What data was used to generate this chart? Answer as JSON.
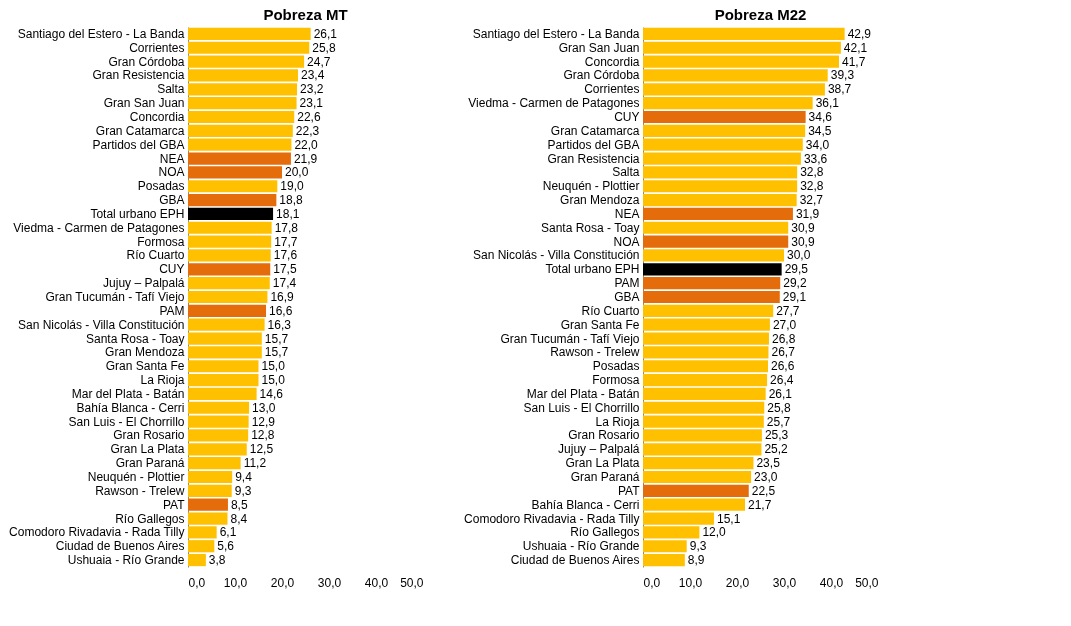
{
  "chart_data": [
    {
      "type": "bar",
      "orientation": "horizontal",
      "title": "Pobreza MT",
      "grid": false,
      "categories": [
        "Santiago del Estero - La Banda",
        "Corrientes",
        "Gran Córdoba",
        "Gran Resistencia",
        "Salta",
        "Gran San Juan",
        "Concordia",
        "Gran Catamarca",
        "Partidos del GBA",
        "NEA",
        "NOA",
        "Posadas",
        "GBA",
        "Total urbano EPH",
        "Viedma - Carmen de Patagones",
        "Formosa",
        "Río Cuarto",
        "CUY",
        "Jujuy – Palpalá",
        "Gran Tucumán - Tafí Viejo",
        "PAM",
        "San Nicolás - Villa Constitución",
        "Santa Rosa - Toay",
        "Gran Mendoza",
        "Gran Santa Fe",
        "La Rioja",
        "Mar del Plata - Batán",
        "Bahía Blanca - Cerri",
        "San Luis - El Chorrillo",
        "Gran Rosario",
        "Gran La Plata",
        "Gran Paraná",
        "Neuquén - Plottier",
        "Rawson - Trelew",
        "PAT",
        "Río Gallegos",
        "Comodoro Rivadavia - Rada Tilly",
        "Ciudad de Buenos Aires",
        "Ushuaia - Río Grande"
      ],
      "values": [
        26.1,
        25.8,
        24.7,
        23.4,
        23.2,
        23.1,
        22.6,
        22.3,
        22.0,
        21.9,
        20.0,
        19.0,
        18.8,
        18.1,
        17.8,
        17.7,
        17.6,
        17.5,
        17.4,
        16.9,
        16.6,
        16.3,
        15.7,
        15.7,
        15.0,
        15.0,
        14.6,
        13.0,
        12.9,
        12.8,
        12.5,
        11.2,
        9.4,
        9.3,
        8.5,
        8.4,
        6.1,
        5.6,
        3.8
      ],
      "value_labels": [
        "26,1",
        "25,8",
        "24,7",
        "23,4",
        "23,2",
        "23,1",
        "22,6",
        "22,3",
        "22,0",
        "21,9",
        "20,0",
        "19,0",
        "18,8",
        "18,1",
        "17,8",
        "17,7",
        "17,6",
        "17,5",
        "17,4",
        "16,9",
        "16,6",
        "16,3",
        "15,7",
        "15,7",
        "15,0",
        "15,0",
        "14,6",
        "13,0",
        "12,9",
        "12,8",
        "12,5",
        "11,2",
        "9,4",
        "9,3",
        "8,5",
        "8,4",
        "6,1",
        "5,6",
        "3,8"
      ],
      "colors": [
        "#ffc000",
        "#ffc000",
        "#ffc000",
        "#ffc000",
        "#ffc000",
        "#ffc000",
        "#ffc000",
        "#ffc000",
        "#ffc000",
        "#e46c0a",
        "#e46c0a",
        "#ffc000",
        "#e46c0a",
        "#000000",
        "#ffc000",
        "#ffc000",
        "#ffc000",
        "#e46c0a",
        "#ffc000",
        "#ffc000",
        "#e46c0a",
        "#ffc000",
        "#ffc000",
        "#ffc000",
        "#ffc000",
        "#ffc000",
        "#ffc000",
        "#ffc000",
        "#ffc000",
        "#ffc000",
        "#ffc000",
        "#ffc000",
        "#ffc000",
        "#ffc000",
        "#e46c0a",
        "#ffc000",
        "#ffc000",
        "#ffc000",
        "#ffc000"
      ],
      "xlim": [
        0,
        50
      ],
      "xticks": [
        {
          "value": 0,
          "label": "0,0"
        },
        {
          "value": 10,
          "label": "10,0"
        },
        {
          "value": 20,
          "label": "20,0"
        },
        {
          "value": 30,
          "label": "30,0"
        },
        {
          "value": 40,
          "label": "40,0"
        },
        {
          "value": 50,
          "label": "50,0"
        }
      ]
    },
    {
      "type": "bar",
      "orientation": "horizontal",
      "title": "Pobreza M22",
      "grid": false,
      "categories": [
        "Santiago del Estero - La Banda",
        "Gran San Juan",
        "Concordia",
        "Gran Córdoba",
        "Corrientes",
        "Viedma - Carmen de Patagones",
        "CUY",
        "Gran Catamarca",
        "Partidos del GBA",
        "Gran Resistencia",
        "Salta",
        "Neuquén - Plottier",
        "Gran Mendoza",
        "NEA",
        "Santa Rosa - Toay",
        "NOA",
        "San Nicolás - Villa Constitución",
        "Total urbano EPH",
        "PAM",
        "GBA",
        "Río Cuarto",
        "Gran Santa Fe",
        "Gran Tucumán - Tafí Viejo",
        "Rawson - Trelew",
        "Posadas",
        "Formosa",
        "Mar del Plata - Batán",
        "San Luis - El Chorrillo",
        "La Rioja",
        "Gran Rosario",
        "Jujuy – Palpalá",
        "Gran La Plata",
        "Gran Paraná",
        "PAT",
        "Bahía Blanca - Cerri",
        "Comodoro Rivadavia - Rada Tilly",
        "Río Gallegos",
        "Ushuaia - Río Grande",
        "Ciudad de Buenos Aires"
      ],
      "values": [
        42.9,
        42.1,
        41.7,
        39.3,
        38.7,
        36.1,
        34.6,
        34.5,
        34.0,
        33.6,
        32.8,
        32.8,
        32.7,
        31.9,
        30.9,
        30.9,
        30.0,
        29.5,
        29.2,
        29.1,
        27.7,
        27.0,
        26.8,
        26.7,
        26.6,
        26.4,
        26.1,
        25.8,
        25.7,
        25.3,
        25.2,
        23.5,
        23.0,
        22.5,
        21.7,
        15.1,
        12.0,
        9.3,
        8.9
      ],
      "value_labels": [
        "42,9",
        "42,1",
        "41,7",
        "39,3",
        "38,7",
        "36,1",
        "34,6",
        "34,5",
        "34,0",
        "33,6",
        "32,8",
        "32,8",
        "32,7",
        "31,9",
        "30,9",
        "30,9",
        "30,0",
        "29,5",
        "29,2",
        "29,1",
        "27,7",
        "27,0",
        "26,8",
        "26,7",
        "26,6",
        "26,4",
        "26,1",
        "25,8",
        "25,7",
        "25,3",
        "25,2",
        "23,5",
        "23,0",
        "22,5",
        "21,7",
        "15,1",
        "12,0",
        "9,3",
        "8,9"
      ],
      "colors": [
        "#ffc000",
        "#ffc000",
        "#ffc000",
        "#ffc000",
        "#ffc000",
        "#ffc000",
        "#e46c0a",
        "#ffc000",
        "#ffc000",
        "#ffc000",
        "#ffc000",
        "#ffc000",
        "#ffc000",
        "#e46c0a",
        "#ffc000",
        "#e46c0a",
        "#ffc000",
        "#000000",
        "#e46c0a",
        "#e46c0a",
        "#ffc000",
        "#ffc000",
        "#ffc000",
        "#ffc000",
        "#ffc000",
        "#ffc000",
        "#ffc000",
        "#ffc000",
        "#ffc000",
        "#ffc000",
        "#ffc000",
        "#ffc000",
        "#ffc000",
        "#e46c0a",
        "#ffc000",
        "#ffc000",
        "#ffc000",
        "#ffc000",
        "#ffc000"
      ],
      "xlim": [
        0,
        50
      ],
      "xticks": [
        {
          "value": 0,
          "label": "0,0"
        },
        {
          "value": 10,
          "label": "10,0"
        },
        {
          "value": 20,
          "label": "20,0"
        },
        {
          "value": 30,
          "label": "30,0"
        },
        {
          "value": 40,
          "label": "40,0"
        },
        {
          "value": 50,
          "label": "50,0"
        }
      ]
    }
  ]
}
